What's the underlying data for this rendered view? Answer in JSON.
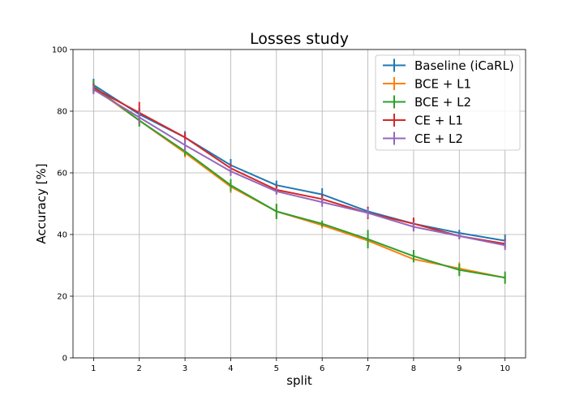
{
  "chart_data": {
    "type": "line",
    "title": "Losses study",
    "xlabel": "split",
    "ylabel": "Accuracy [%]",
    "x": [
      1,
      2,
      3,
      4,
      5,
      6,
      7,
      8,
      9,
      10
    ],
    "xlim": [
      0.55,
      10.45
    ],
    "ylim": [
      0,
      100
    ],
    "yticks": [
      0,
      20,
      40,
      60,
      80,
      100
    ],
    "grid": true,
    "legend_position": "top-right",
    "series": [
      {
        "name": "Baseline (iCaRL)",
        "color": "#1f77b4",
        "values": [
          88.5,
          79.0,
          71.5,
          62.5,
          56.0,
          53.0,
          47.5,
          43.5,
          40.5,
          38.0
        ],
        "errors": [
          2.0,
          2.0,
          2.0,
          2.0,
          1.5,
          2.0,
          1.5,
          1.5,
          1.0,
          2.0
        ]
      },
      {
        "name": "BCE + L1",
        "color": "#ff7f0e",
        "values": [
          87.5,
          77.0,
          66.5,
          55.5,
          47.5,
          43.0,
          38.0,
          32.0,
          29.0,
          26.0
        ],
        "errors": [
          1.5,
          1.5,
          1.5,
          2.0,
          2.0,
          1.0,
          1.5,
          1.0,
          2.0,
          1.5
        ]
      },
      {
        "name": "BCE + L2",
        "color": "#2ca02c",
        "values": [
          88.0,
          77.0,
          67.0,
          56.0,
          47.5,
          43.5,
          38.5,
          33.0,
          28.5,
          26.0
        ],
        "errors": [
          2.0,
          2.0,
          1.5,
          2.0,
          2.5,
          1.0,
          3.0,
          2.0,
          2.0,
          2.0
        ]
      },
      {
        "name": "CE + L1",
        "color": "#d62728",
        "values": [
          87.5,
          79.5,
          71.5,
          61.5,
          54.5,
          51.5,
          47.0,
          43.5,
          39.5,
          37.0
        ],
        "errors": [
          1.5,
          3.5,
          1.5,
          1.5,
          1.5,
          1.5,
          2.0,
          2.0,
          1.0,
          1.5
        ]
      },
      {
        "name": "CE + L2",
        "color": "#9467bd",
        "values": [
          87.0,
          78.0,
          69.0,
          60.5,
          54.0,
          50.5,
          47.0,
          42.5,
          39.5,
          36.5
        ],
        "errors": [
          1.5,
          2.0,
          2.0,
          1.5,
          1.0,
          1.5,
          1.5,
          1.5,
          1.0,
          1.5
        ]
      }
    ]
  }
}
